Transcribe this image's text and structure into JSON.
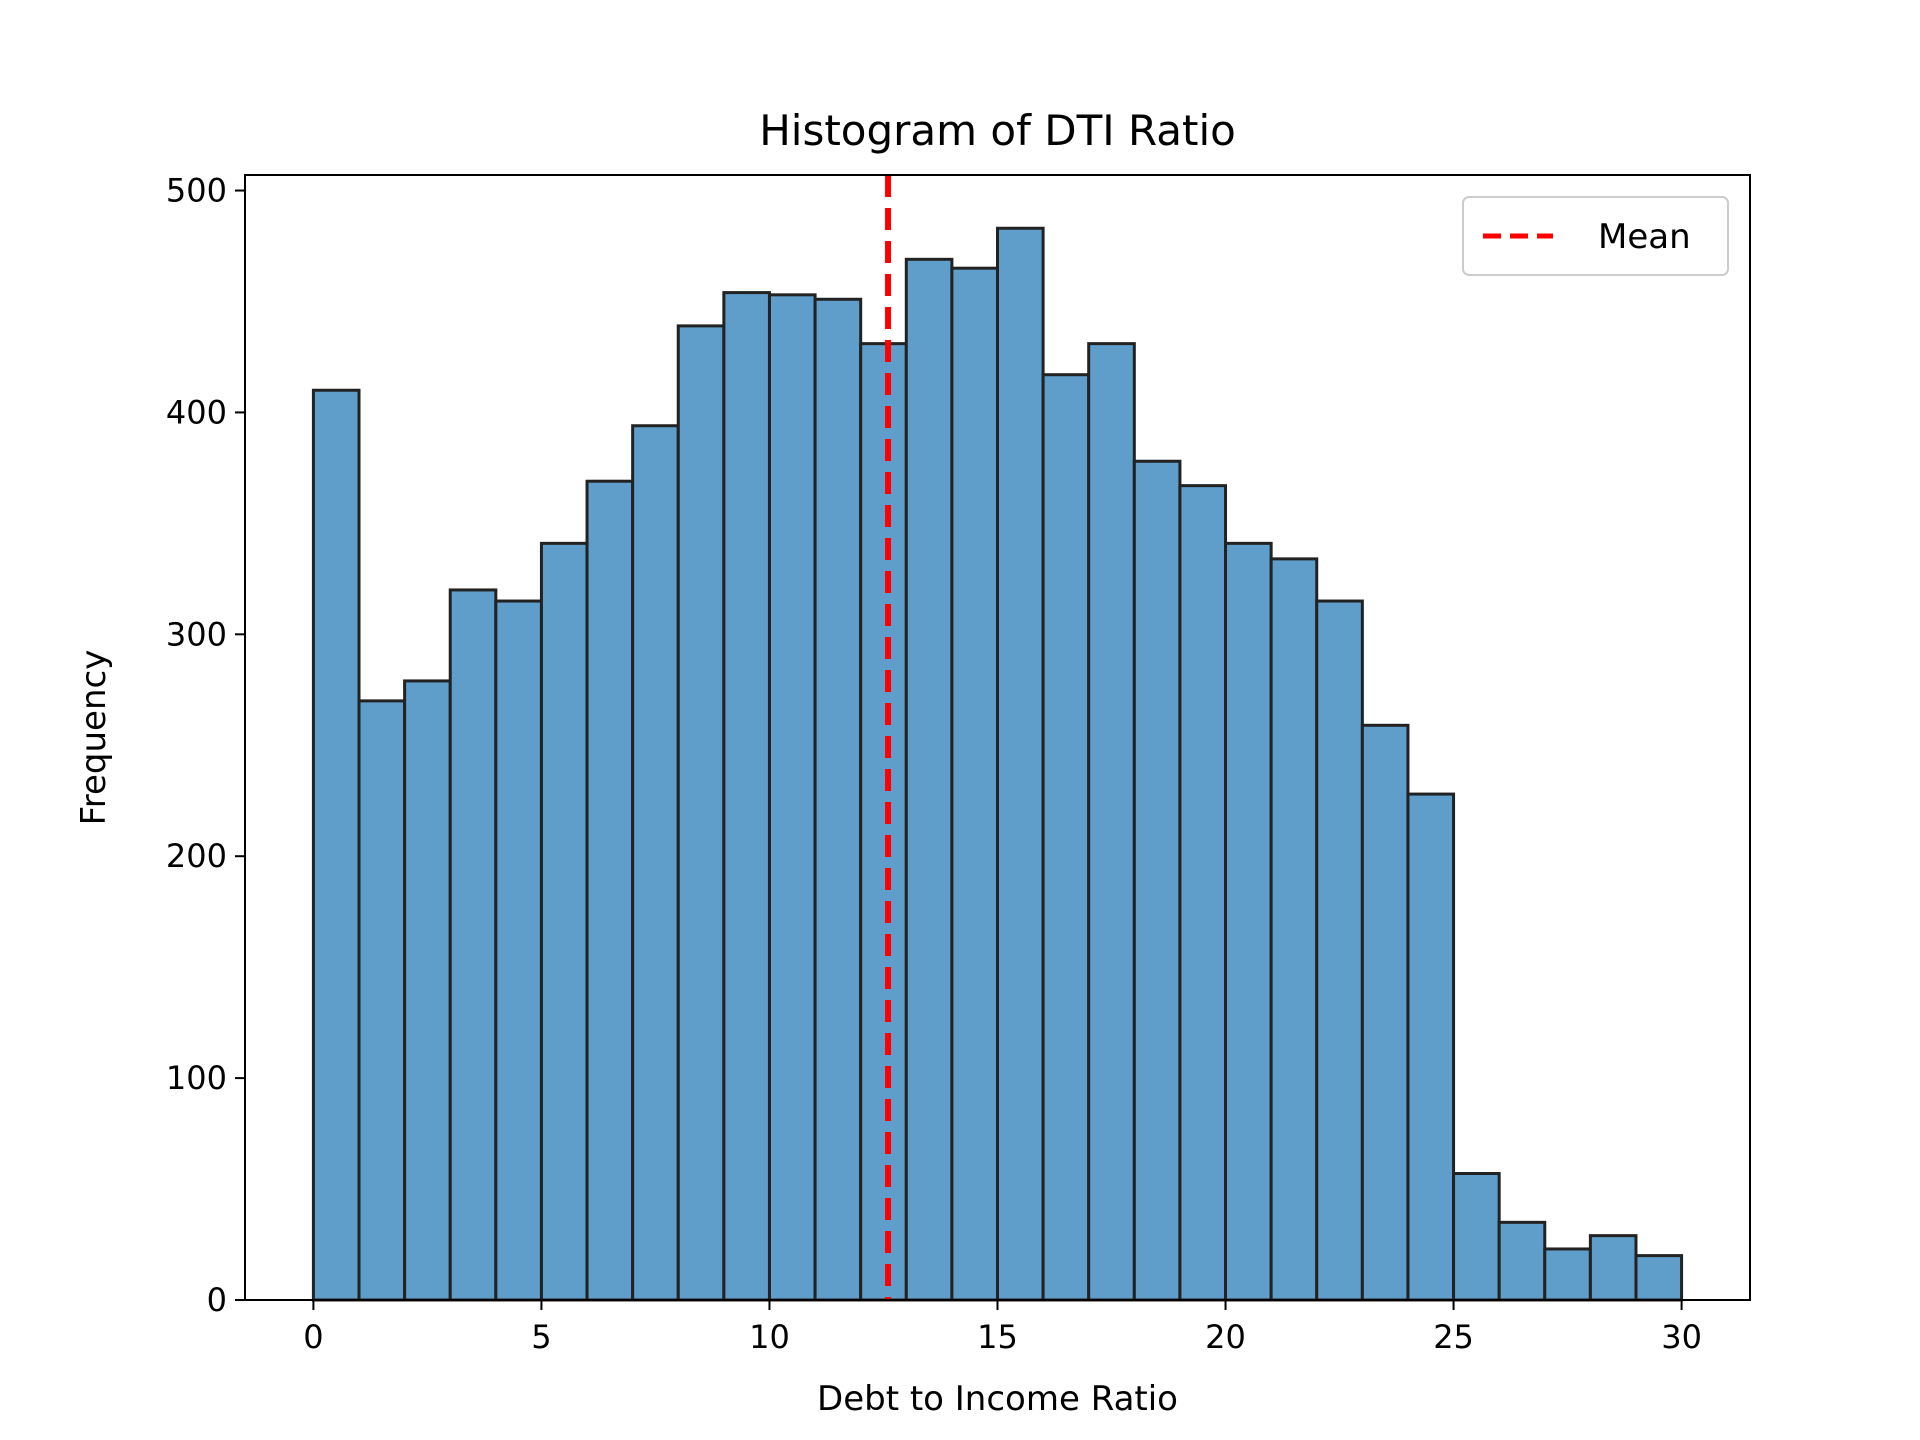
{
  "chart_data": {
    "type": "bar",
    "title": "Histogram of DTI Ratio",
    "xlabel": "Debt to Income Ratio",
    "ylabel": "Frequency",
    "xlim": [
      -1.5,
      31.5
    ],
    "ylim": [
      0,
      507
    ],
    "bin_edges": [
      0,
      1,
      2,
      3,
      4,
      5,
      6,
      7,
      8,
      9,
      10,
      11,
      12,
      13,
      14,
      15,
      16,
      17,
      18,
      19,
      20,
      21,
      22,
      23,
      24,
      25,
      26,
      27,
      28,
      29,
      30
    ],
    "values": [
      410,
      270,
      279,
      320,
      315,
      341,
      369,
      394,
      439,
      454,
      453,
      451,
      431,
      469,
      465,
      483,
      417,
      431,
      378,
      367,
      341,
      334,
      315,
      259,
      228,
      57,
      35,
      23,
      29,
      20
    ],
    "x_ticks": [
      "0",
      "5",
      "10",
      "15",
      "20",
      "25",
      "30"
    ],
    "y_ticks": [
      "0",
      "100",
      "200",
      "300",
      "400",
      "500"
    ],
    "mean_line": {
      "x": 12.6,
      "label": "Mean",
      "color": "#ff0000"
    },
    "bar_color": "#5f9ecb",
    "edge_color": "#222222",
    "grid": false,
    "legend_position": "top-right"
  }
}
